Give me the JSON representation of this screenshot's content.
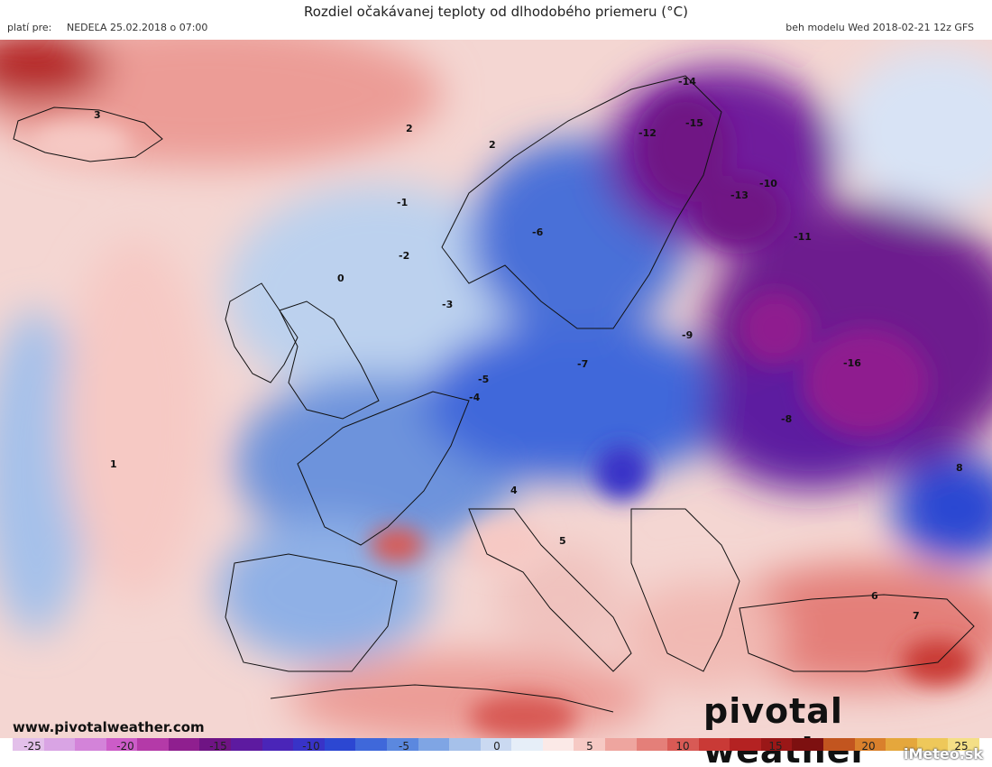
{
  "header": {
    "title": "Rozdiel očakávanej teploty od dlhodobého priemeru (°C)",
    "valid_label": "platí pre:",
    "valid_date": "NEDEĽA 25.02.2018 o 07:00",
    "run_info": "beh modelu Wed 2018-02-21 12z GFS"
  },
  "footer": {
    "website": "www.pivotalweather.com",
    "brand": "pivotal weather",
    "imeteo": "iMeteo.sk"
  },
  "colorbar": {
    "tick_labels": [
      "-25",
      "-20",
      "-15",
      "-10",
      "-5",
      "0",
      "5",
      "10",
      "15",
      "20",
      "25"
    ],
    "colors": [
      "#e3c0ea",
      "#d9a4e4",
      "#d383d9",
      "#cc5cc8",
      "#b43aa8",
      "#8f1f8f",
      "#6f1484",
      "#5d1aa0",
      "#4a25b8",
      "#3833c7",
      "#2c47d2",
      "#3f68da",
      "#5b88df",
      "#7fa5e4",
      "#a6c1ea",
      "#cad9f1",
      "#e6eef8",
      "#fbe9e7",
      "#f6c9c4",
      "#eea59f",
      "#e47f79",
      "#d85a55",
      "#c93a36",
      "#b42222",
      "#9a1717",
      "#7d1010",
      "#c2551f",
      "#d9802c",
      "#e5a73c",
      "#eec85a",
      "#f4df86"
    ]
  },
  "map_labels": [
    {
      "text": "3",
      "lon_lat": "iceland"
    },
    {
      "text": "2"
    },
    {
      "text": "2"
    },
    {
      "text": "-1"
    },
    {
      "text": "-2"
    },
    {
      "text": "-3"
    },
    {
      "text": "1"
    },
    {
      "text": "-14"
    },
    {
      "text": "-15"
    },
    {
      "text": "-16"
    },
    {
      "text": "-13"
    },
    {
      "text": "-12"
    },
    {
      "text": "-11"
    },
    {
      "text": "-10"
    },
    {
      "text": "-9"
    },
    {
      "text": "-8"
    },
    {
      "text": "-7"
    },
    {
      "text": "-6"
    },
    {
      "text": "-5"
    },
    {
      "text": "-4"
    },
    {
      "text": "0"
    },
    {
      "text": "4"
    },
    {
      "text": "5"
    },
    {
      "text": "6"
    },
    {
      "text": "7"
    },
    {
      "text": "8"
    }
  ]
}
